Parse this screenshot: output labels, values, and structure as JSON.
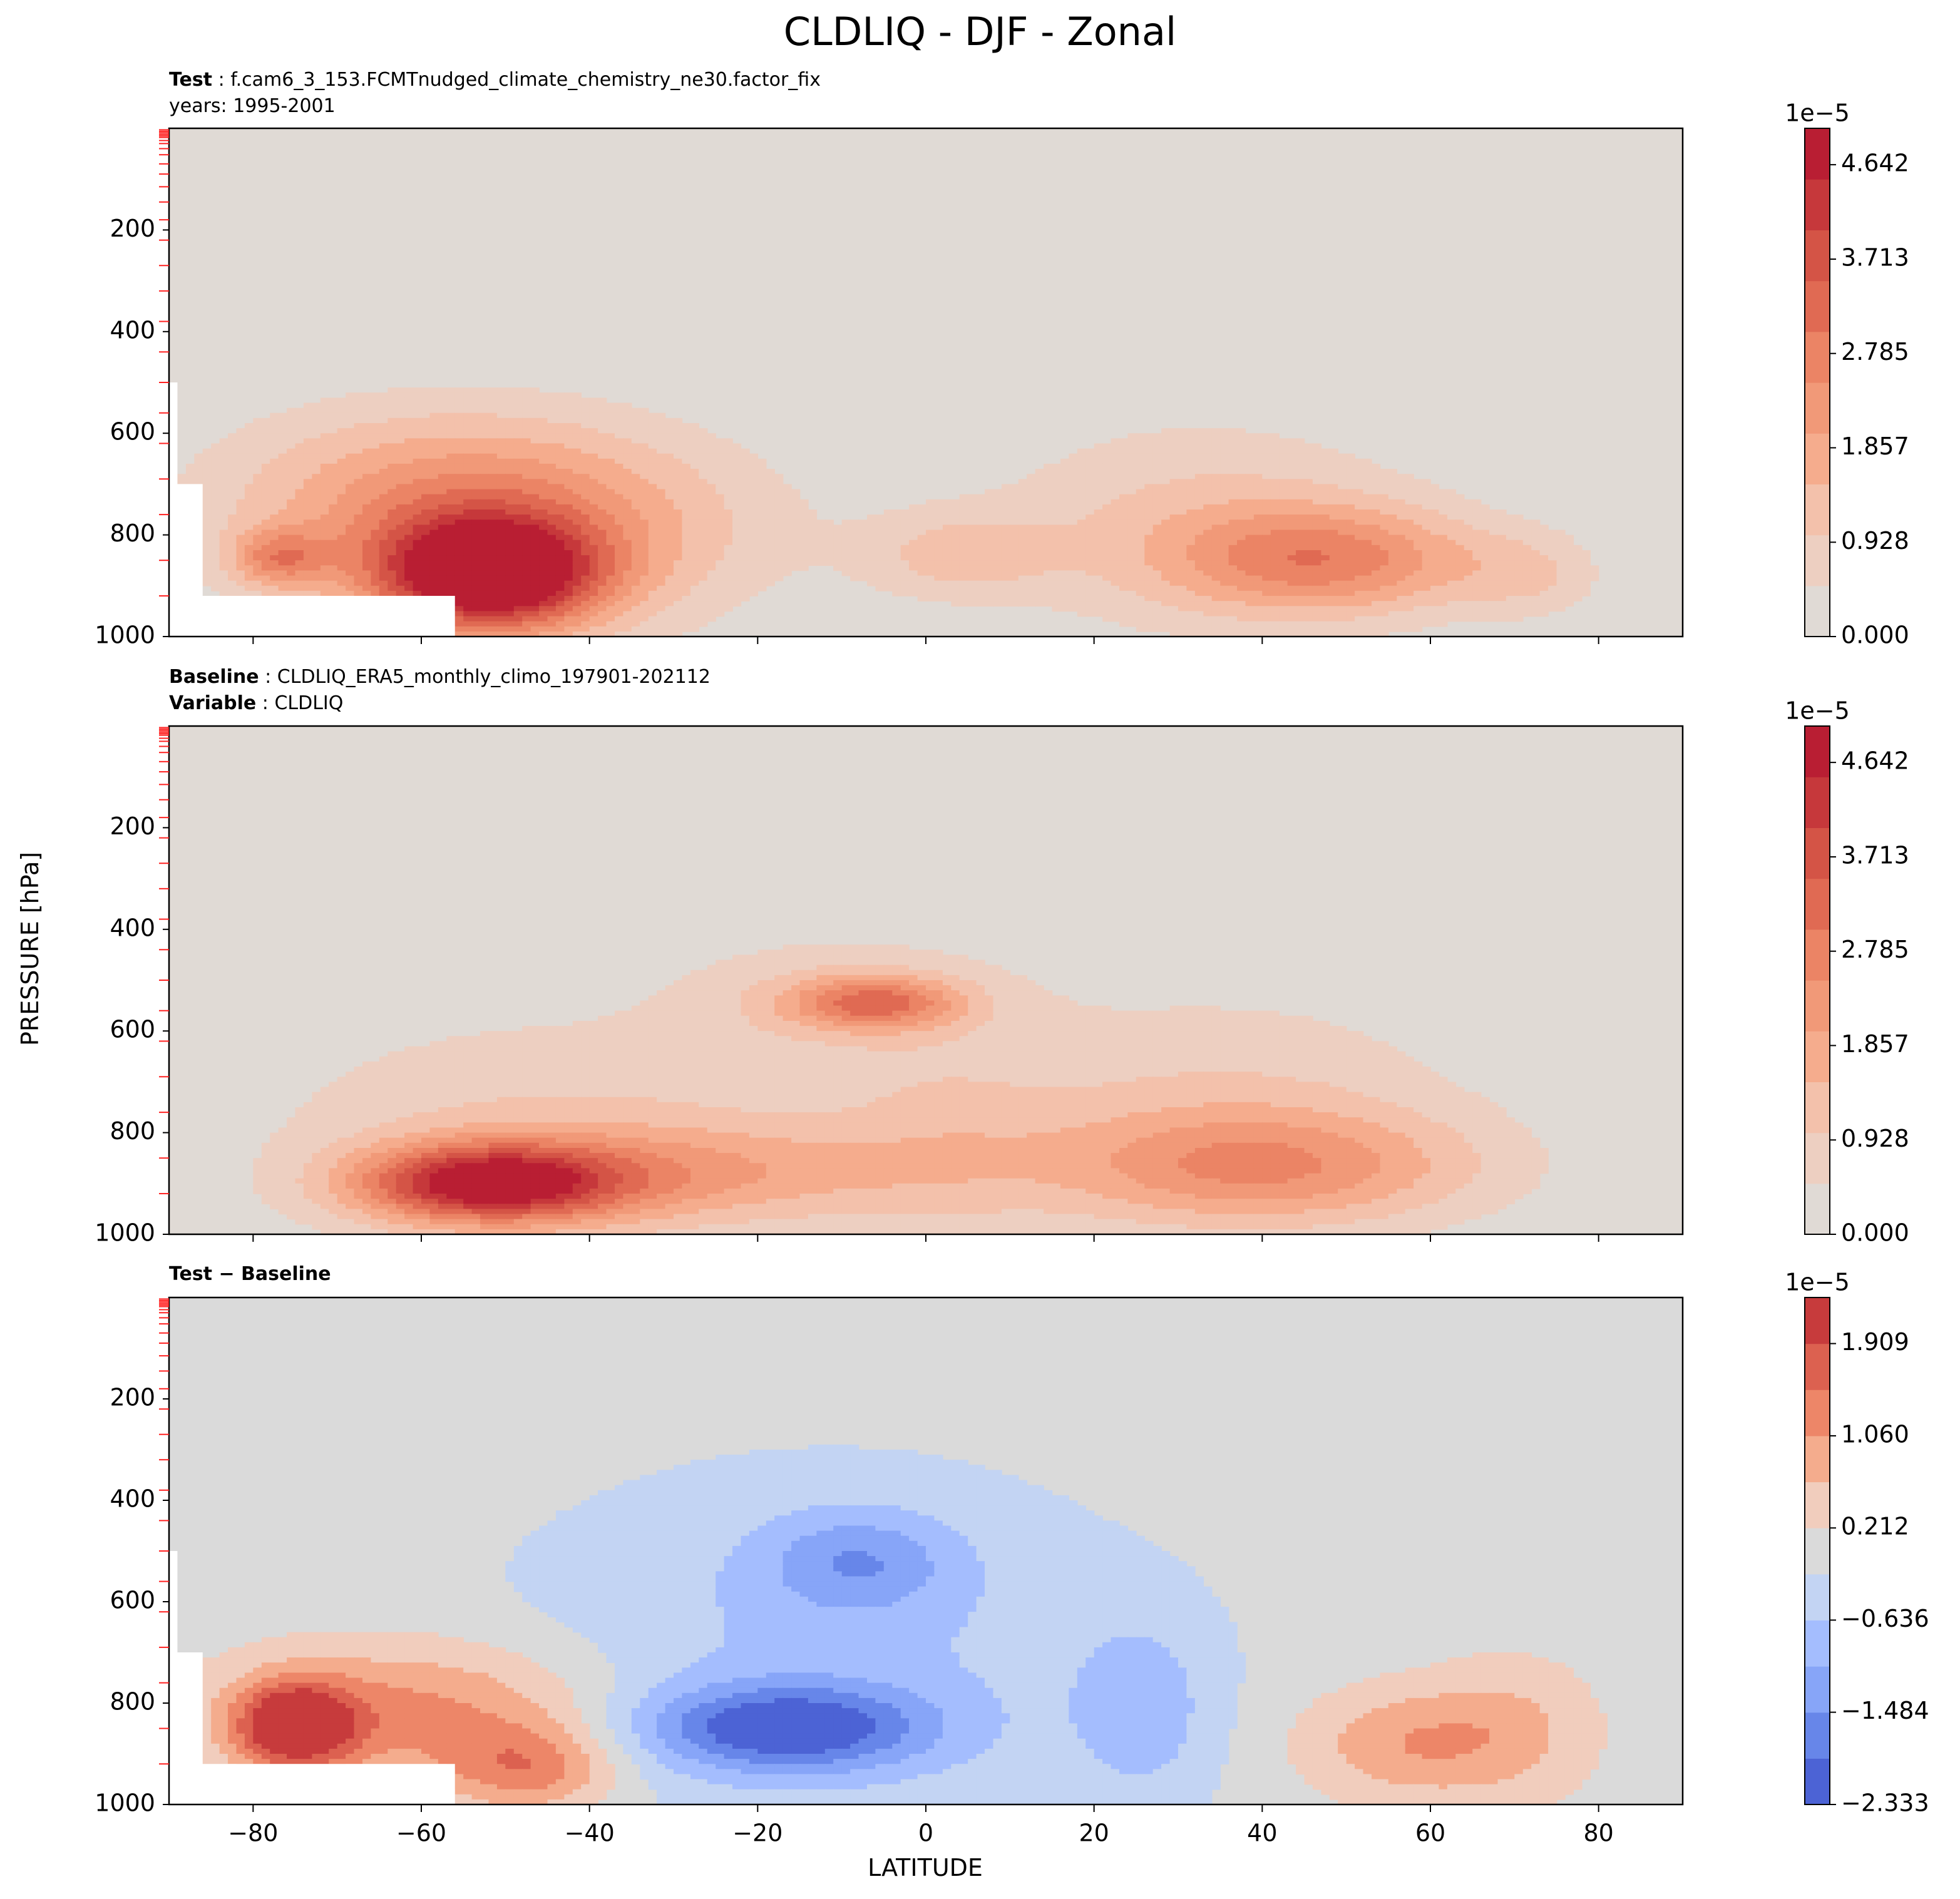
{
  "figure": {
    "title": "CLDLIQ - DJF - Zonal",
    "xlabel": "LATITUDE",
    "ylabel": "PRESSURE [hPa]"
  },
  "panels": [
    {
      "title_label": "Test",
      "title_value": "f.cam6_3_153.FCMTnudged_climate_chemistry_ne30.factor_fix",
      "subtitle": "years: 1995-2001"
    },
    {
      "title_label": "Baseline",
      "title_value": "CLDLIQ_ERA5_monthly_climo_197901-202112",
      "subtitle_label": "Variable",
      "subtitle_value": "CLDLIQ"
    },
    {
      "title_label": "Test − Baseline"
    }
  ],
  "colors": {
    "seq": [
      "#e0dad5",
      "#edcfc1",
      "#f3c1ab",
      "#f5ac8d",
      "#f19978",
      "#eb8465",
      "#e06a53",
      "#d45446",
      "#c6383b",
      "#b91e33"
    ],
    "diff": [
      "#4c63d5",
      "#6786e9",
      "#87a5f8",
      "#a4bdfe",
      "#c3d4f3",
      "#dadada",
      "#f1cdbd",
      "#f4ac8d",
      "#ed8668",
      "#dc6150",
      "#c73b3c"
    ]
  },
  "chart_data": [
    {
      "type": "contour",
      "title": "Test : f.cam6_3_153.FCMTnudged_climate_chemistry_ne30.factor_fix",
      "subtitle": "years: 1995-2001",
      "xlabel": "LATITUDE",
      "ylabel": "PRESSURE [hPa]",
      "xlim": [
        -90,
        90
      ],
      "ylim": [
        1000,
        0
      ],
      "xticks": [
        -80,
        -60,
        -40,
        -20,
        0,
        20,
        40,
        60,
        80
      ],
      "yticks": [
        200,
        400,
        600,
        800,
        1000
      ],
      "colorbar": {
        "scale_label": "1e−5",
        "ticks": [
          "0.000",
          "0.928",
          "1.857",
          "2.785",
          "3.713",
          "4.642"
        ],
        "tick_values": [
          0.0,
          0.928,
          1.857,
          2.785,
          3.713,
          4.642
        ],
        "range": [
          0.0,
          5.0
        ]
      },
      "features": [
        {
          "lat": -52,
          "p": 880,
          "peak": 5.0,
          "slat": 9,
          "sp": 75
        },
        {
          "lat": -50,
          "p": 790,
          "peak": 2.2,
          "slat": 20,
          "sp": 140
        },
        {
          "lat": -60,
          "p": 700,
          "peak": 0.85,
          "slat": 18,
          "sp": 120
        },
        {
          "lat": -77,
          "p": 845,
          "peak": 1.9,
          "slat": 4,
          "sp": 40
        },
        {
          "lat": 4,
          "p": 840,
          "peak": 1.05,
          "slat": 8,
          "sp": 60
        },
        {
          "lat": 48,
          "p": 850,
          "peak": 2.3,
          "slat": 13,
          "sp": 75
        },
        {
          "lat": 33,
          "p": 780,
          "peak": 1.1,
          "slat": 18,
          "sp": 150
        },
        {
          "lat": 72,
          "p": 880,
          "peak": 0.8,
          "slat": 6,
          "sp": 60
        }
      ]
    },
    {
      "type": "contour",
      "title": "Baseline : CLDLIQ_ERA5_monthly_climo_197901-202112",
      "subtitle": "Variable : CLDLIQ",
      "xlabel": "LATITUDE",
      "ylabel": "PRESSURE [hPa]",
      "xlim": [
        -90,
        90
      ],
      "ylim": [
        1000,
        0
      ],
      "xticks": [
        -80,
        -60,
        -40,
        -20,
        0,
        20,
        40,
        60,
        80
      ],
      "yticks": [
        200,
        400,
        600,
        800,
        1000
      ],
      "colorbar": {
        "scale_label": "1e−5",
        "ticks": [
          "0.000",
          "0.928",
          "1.857",
          "2.785",
          "3.713",
          "4.642"
        ],
        "tick_values": [
          0.0,
          0.928,
          1.857,
          2.785,
          3.713,
          4.642
        ],
        "range": [
          0.0,
          5.0
        ]
      },
      "features": [
        {
          "lat": -52,
          "p": 900,
          "peak": 4.6,
          "slat": 11,
          "sp": 55
        },
        {
          "lat": -45,
          "p": 800,
          "peak": 1.0,
          "slat": 25,
          "sp": 170
        },
        {
          "lat": -25,
          "p": 880,
          "peak": 1.4,
          "slat": 16,
          "sp": 70
        },
        {
          "lat": -6,
          "p": 545,
          "peak": 2.4,
          "slat": 7,
          "sp": 35
        },
        {
          "lat": -10,
          "p": 530,
          "peak": 0.9,
          "slat": 14,
          "sp": 85
        },
        {
          "lat": 40,
          "p": 870,
          "peak": 2.0,
          "slat": 18,
          "sp": 80
        },
        {
          "lat": 35,
          "p": 750,
          "peak": 0.95,
          "slat": 22,
          "sp": 170
        },
        {
          "lat": 2,
          "p": 830,
          "peak": 0.7,
          "slat": 10,
          "sp": 140
        }
      ]
    },
    {
      "type": "contour",
      "title": "Test − Baseline",
      "xlabel": "LATITUDE",
      "ylabel": "PRESSURE [hPa]",
      "xlim": [
        -90,
        90
      ],
      "ylim": [
        1000,
        0
      ],
      "xticks": [
        -80,
        -60,
        -40,
        -20,
        0,
        20,
        40,
        60,
        80
      ],
      "yticks": [
        200,
        400,
        600,
        800,
        1000
      ],
      "colorbar": {
        "scale_label": "1e−5",
        "ticks": [
          "−2.333",
          "−1.484",
          "−0.636",
          "0.212",
          "1.060",
          "1.909"
        ],
        "tick_values": [
          -2.333,
          -1.484,
          -0.636,
          0.212,
          1.06,
          1.909
        ],
        "range": [
          -2.333,
          2.333
        ]
      },
      "features": [
        {
          "lat": -75,
          "p": 845,
          "peak": 2.4,
          "slat": 5,
          "sp": 60
        },
        {
          "lat": -60,
          "p": 820,
          "peak": 1.3,
          "slat": 16,
          "sp": 100
        },
        {
          "lat": -47,
          "p": 930,
          "peak": 1.2,
          "slat": 7,
          "sp": 60
        },
        {
          "lat": -17,
          "p": 850,
          "peak": -2.0,
          "slat": 12,
          "sp": 60
        },
        {
          "lat": -8,
          "p": 520,
          "peak": -1.0,
          "slat": 8,
          "sp": 70
        },
        {
          "lat": -12,
          "p": 700,
          "peak": -0.7,
          "slat": 28,
          "sp": 260
        },
        {
          "lat": 26,
          "p": 820,
          "peak": -0.7,
          "slat": 6,
          "sp": 130
        },
        {
          "lat": 57,
          "p": 880,
          "peak": 1.0,
          "slat": 9,
          "sp": 80
        },
        {
          "lat": 70,
          "p": 850,
          "peak": 0.6,
          "slat": 7,
          "sp": 100
        }
      ]
    }
  ]
}
